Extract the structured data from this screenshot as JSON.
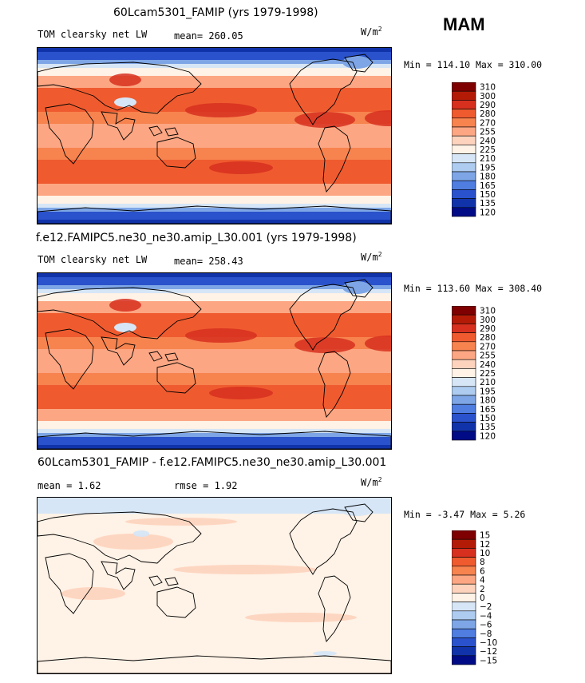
{
  "header": {
    "season": "MAM"
  },
  "units_base": "W/m",
  "units_exp": "2",
  "chart_data": [
    {
      "type": "heatmap",
      "title": "60Lcam5301_FAMIP (yrs 1979-1998)",
      "variable": "TOM clearsky net LW",
      "stat_text": "mean= 260.05",
      "minmax_text": "Min = 114.10 Max = 310.00",
      "min": 114.1,
      "max": 310.0,
      "levels": [
        "310",
        "300",
        "290",
        "280",
        "270",
        "255",
        "240",
        "225",
        "210",
        "195",
        "180",
        "165",
        "150",
        "135",
        "120"
      ],
      "colors": [
        "#7f0000",
        "#b31b07",
        "#d7301f",
        "#ef5b2f",
        "#f7834f",
        "#fca683",
        "#fdd3bd",
        "#fff2e6",
        "#d6e6f7",
        "#aecbf0",
        "#7ea6e6",
        "#4f7de0",
        "#2a52cc",
        "#1133aa",
        "#000b85"
      ]
    },
    {
      "type": "heatmap",
      "title": "f.e12.FAMIPC5.ne30_ne30.amip_L30.001 (yrs 1979-1998)",
      "variable": "TOM clearsky net LW",
      "stat_text": "mean= 258.43",
      "minmax_text": "Min = 113.60 Max = 308.40",
      "min": 113.6,
      "max": 308.4,
      "levels": [
        "310",
        "300",
        "290",
        "280",
        "270",
        "255",
        "240",
        "225",
        "210",
        "195",
        "180",
        "165",
        "150",
        "135",
        "120"
      ],
      "colors": [
        "#7f0000",
        "#b31b07",
        "#d7301f",
        "#ef5b2f",
        "#f7834f",
        "#fca683",
        "#fdd3bd",
        "#fff2e6",
        "#d6e6f7",
        "#aecbf0",
        "#7ea6e6",
        "#4f7de0",
        "#2a52cc",
        "#1133aa",
        "#000b85"
      ]
    },
    {
      "type": "heatmap",
      "title": "60Lcam5301_FAMIP - f.e12.FAMIPC5.ne30_ne30.amip_L30.001",
      "stat_text": "mean =   1.62",
      "rmse_text": "rmse =   1.92",
      "minmax_text": "Min = -3.47 Max =  5.26",
      "min": -3.47,
      "max": 5.26,
      "levels": [
        "15",
        "12",
        "10",
        "8",
        "6",
        "4",
        "2",
        "0",
        "−2",
        "−4",
        "−6",
        "−8",
        "−10",
        "−12",
        "−15"
      ],
      "colors": [
        "#7f0000",
        "#b31b07",
        "#d7301f",
        "#ef5b2f",
        "#f7834f",
        "#fca683",
        "#fdd3bd",
        "#fff2e6",
        "#d6e6f7",
        "#aecbf0",
        "#7ea6e6",
        "#4f7de0",
        "#2a52cc",
        "#1133aa",
        "#000b85"
      ]
    }
  ]
}
